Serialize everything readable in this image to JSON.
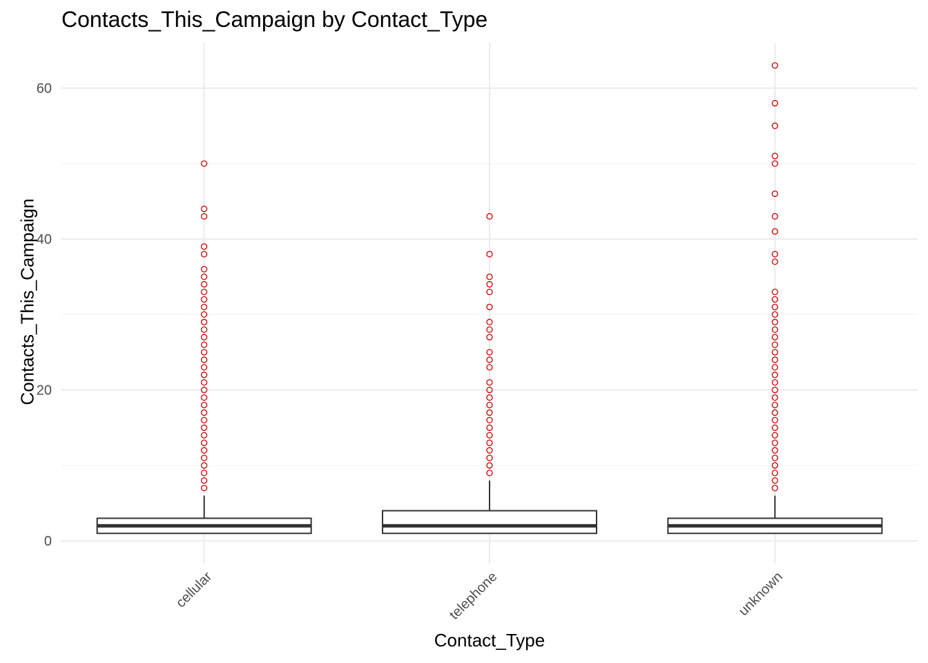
{
  "chart_data": {
    "type": "box",
    "title": "Contacts_This_Campaign by Contact_Type",
    "xlabel": "Contact_Type",
    "ylabel": "Contacts_This_Campaign",
    "categories": [
      "cellular",
      "telephone",
      "unknown"
    ],
    "ylim": [
      -3,
      66
    ],
    "yticks": [
      0,
      20,
      40,
      60
    ],
    "grid": true,
    "outlier_color": "#cc0000",
    "box_color": "#333333",
    "boxes": [
      {
        "category": "cellular",
        "min": 1,
        "q1": 1,
        "median": 2,
        "q3": 3,
        "max": 6,
        "outliers": [
          7,
          8,
          9,
          10,
          11,
          12,
          13,
          14,
          15,
          16,
          17,
          18,
          19,
          20,
          21,
          22,
          23,
          24,
          25,
          26,
          27,
          28,
          29,
          30,
          31,
          32,
          33,
          34,
          35,
          36,
          38,
          39,
          43,
          44,
          50
        ]
      },
      {
        "category": "telephone",
        "min": 1,
        "q1": 1,
        "median": 2,
        "q3": 4,
        "max": 8,
        "outliers": [
          9,
          10,
          11,
          12,
          13,
          14,
          15,
          16,
          17,
          18,
          19,
          20,
          21,
          23,
          24,
          25,
          27,
          28,
          29,
          31,
          33,
          34,
          35,
          38,
          43
        ]
      },
      {
        "category": "unknown",
        "min": 1,
        "q1": 1,
        "median": 2,
        "q3": 3,
        "max": 6,
        "outliers": [
          7,
          8,
          9,
          10,
          11,
          12,
          13,
          14,
          15,
          16,
          17,
          18,
          19,
          20,
          21,
          22,
          23,
          24,
          25,
          26,
          27,
          28,
          29,
          30,
          31,
          32,
          33,
          37,
          38,
          41,
          43,
          46,
          50,
          51,
          55,
          58,
          63
        ]
      }
    ]
  }
}
